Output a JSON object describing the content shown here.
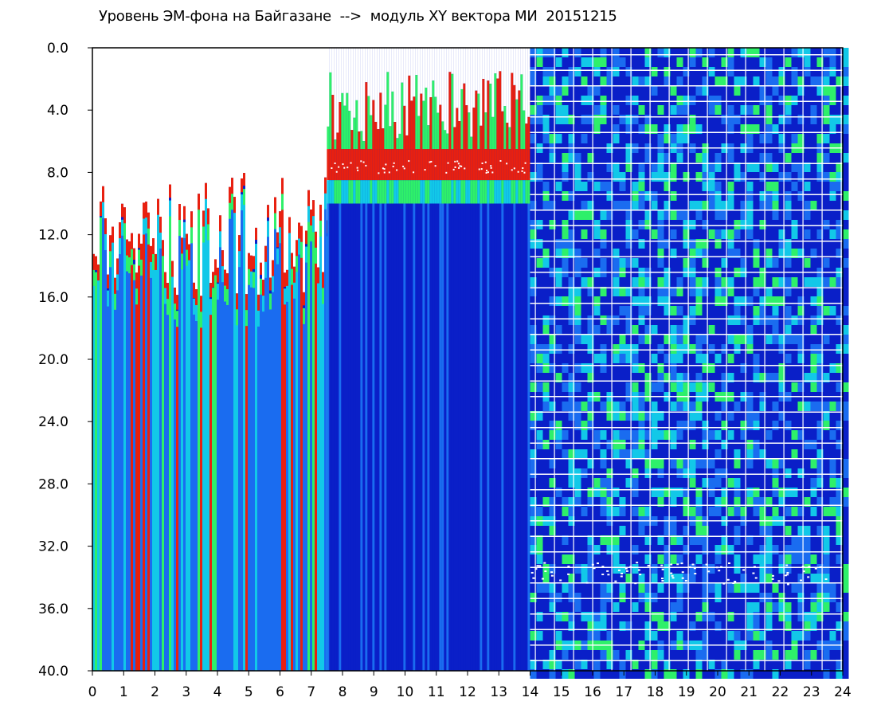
{
  "title": "Уровень ЭМ-фона на Байгазане  -->  модуль XY вектора МИ  20151215",
  "chart_data": {
    "type": "heatmap",
    "title": "Уровень ЭМ-фона на Байгазане  -->  модуль XY вектора МИ  20151215",
    "xlabel": "",
    "ylabel": "",
    "x_range": [
      0,
      24
    ],
    "y_range": [
      0.0,
      40.0
    ],
    "y_inverted": true,
    "x_ticks": [
      "0",
      "1",
      "2",
      "3",
      "4",
      "5",
      "6",
      "7",
      "8",
      "9",
      "10",
      "11",
      "12",
      "13",
      "14",
      "15",
      "16",
      "17",
      "18",
      "19",
      "20",
      "21",
      "22",
      "23",
      "24"
    ],
    "y_ticks": [
      "0.0",
      "4.0",
      "8.0",
      "12.0",
      "16.0",
      "20.0",
      "24.0",
      "28.0",
      "32.0",
      "36.0",
      "40.0"
    ],
    "colorscale": [
      "#0a1fc8",
      "#1a6cf0",
      "#12c8e8",
      "#2ef06a",
      "#f0e020",
      "#e82010",
      "#ffffff"
    ],
    "regions": [
      {
        "x_from": 0.0,
        "x_to": 7.5,
        "pattern": "vertical-streaks",
        "dominant_levels": [
          "blue",
          "cyan",
          "green",
          "red"
        ],
        "upper_edge_approx": [
          8,
          16
        ]
      },
      {
        "x_from": 7.5,
        "x_to": 14.0,
        "pattern": "band-near-top",
        "band_center": 7.5,
        "dominant_levels": [
          "red",
          "green",
          "blue"
        ]
      },
      {
        "x_from": 14.0,
        "x_to": 24.0,
        "pattern": "grid-noise",
        "dominant_levels": [
          "blue",
          "green",
          "white"
        ]
      }
    ],
    "grid": false,
    "legend": "none"
  }
}
